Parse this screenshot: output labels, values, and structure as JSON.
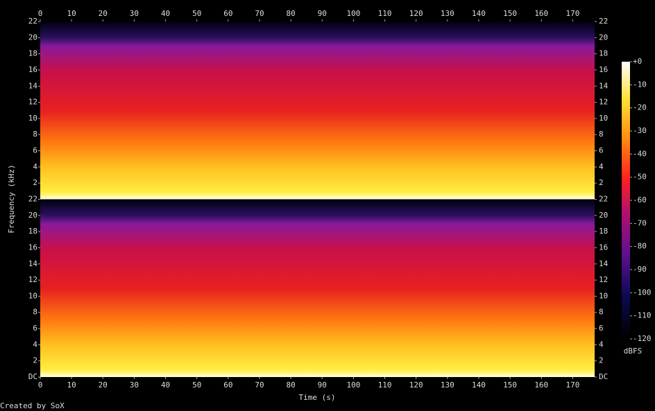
{
  "chart_data": {
    "type": "spectrogram",
    "xlabel": "Time (s)",
    "ylabel": "Frequency (kHz)",
    "xlim": [
      0,
      177
    ],
    "xticks": [
      0,
      10,
      20,
      30,
      40,
      50,
      60,
      70,
      80,
      90,
      100,
      110,
      120,
      130,
      140,
      150,
      160,
      170
    ],
    "ylim": [
      0,
      22
    ],
    "yticks": [
      {
        "value": 0,
        "label": "DC"
      },
      2,
      4,
      6,
      8,
      10,
      12,
      14,
      16,
      18,
      20,
      22
    ],
    "channels": 2,
    "colorbar": {
      "label": "dBFS",
      "lim": [
        -120,
        0
      ],
      "ticks": [
        {
          "value": 0,
          "label": "+0"
        },
        -10,
        -20,
        -30,
        -40,
        -50,
        -60,
        -70,
        -80,
        -90,
        -100,
        -110,
        -120
      ]
    }
  },
  "footer": "Created by SoX"
}
